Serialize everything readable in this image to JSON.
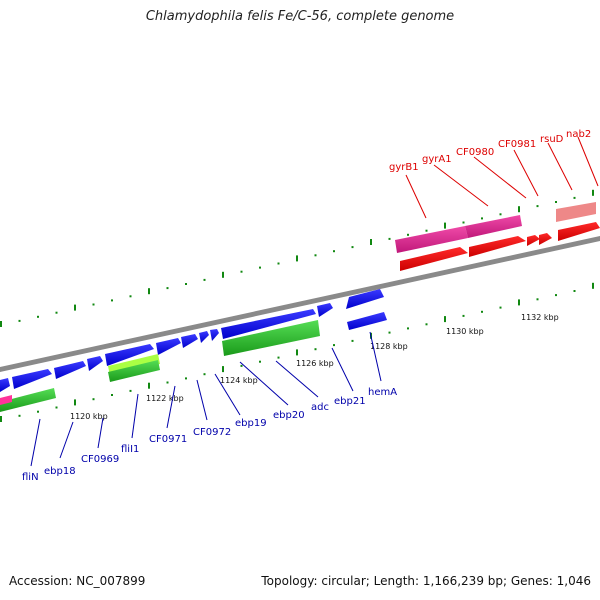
{
  "title": "Chlamydophila felis Fe/C-56, complete genome",
  "footer": {
    "accession": "Accession: NC_007899",
    "stats": "Topology: circular; Length: 1,166,239 bp; Genes: 1,046"
  },
  "colors": {
    "backbone": "#8a8a8a",
    "forward_gene": "#0000ee",
    "reverse_gene": "#ee0000",
    "rrna": "#ee2e8f",
    "trna": "#33bb33",
    "tick": "#118811",
    "label_forward": "#0000aa",
    "label_reverse": "#dd0000"
  },
  "ticks": [
    {
      "label": "1120 kbp"
    },
    {
      "label": "1122 kbp"
    },
    {
      "label": "1124 kbp"
    },
    {
      "label": "1126 kbp"
    },
    {
      "label": "1128 kbp"
    },
    {
      "label": "1130 kbp"
    },
    {
      "label": "1132 kbp"
    }
  ],
  "genes_lower": [
    "fliN",
    "ebp18",
    "CF0969",
    "fliI1",
    "CF0971",
    "CF0972",
    "ebp19",
    "ebp20",
    "adc",
    "ebp21",
    "hemA"
  ],
  "genes_upper": [
    "gyrB1",
    "gyrA1",
    "CF0980",
    "CF0981",
    "rsuD",
    "nab2"
  ]
}
